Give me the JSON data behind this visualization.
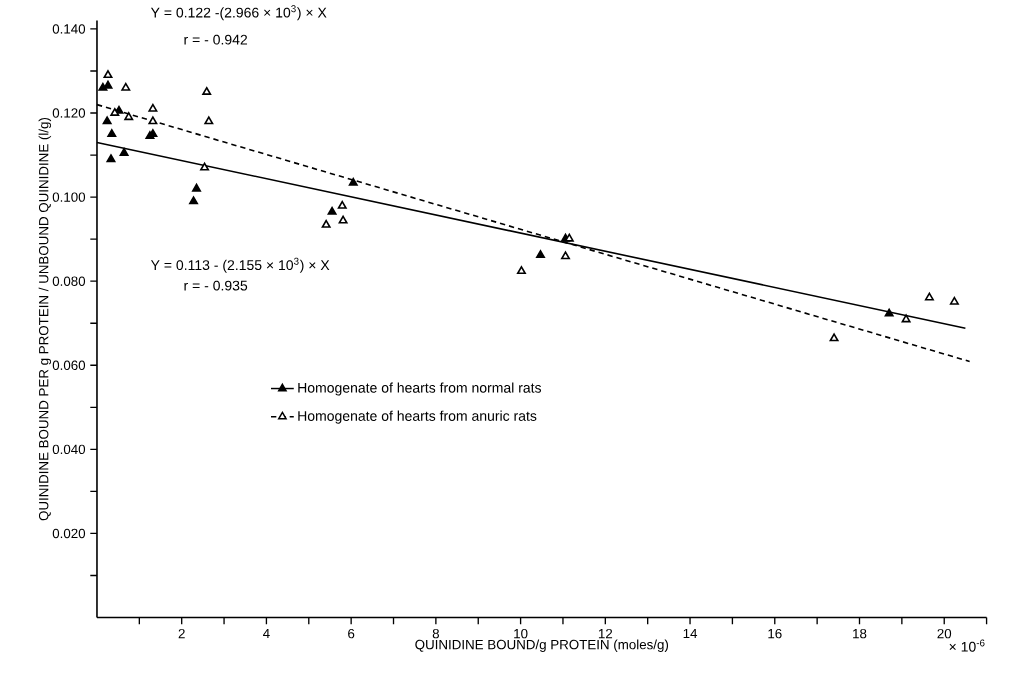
{
  "chart_data": {
    "type": "scatter",
    "xlabel": "QUINIDINE BOUND/g PROTEIN (moles/g)",
    "ylabel": "QUINIDINE BOUND PER g PROTEIN / UNBOUND QUINIDINE (l/g)",
    "annotations": [
      "Y = 0.122 -(2.966 × 10$^{3}$) × X",
      "r = - 0.942",
      "Y = 0.113 - (2.155 × 10$^{3}$) × X",
      "r = - 0.935",
      "× 10$^{-6}$"
    ],
    "xlim": [
      0,
      21
    ],
    "ylim": [
      0,
      0.142
    ],
    "xticks": [
      {
        "value": 1,
        "label": null
      },
      2,
      {
        "value": 3,
        "label": null
      },
      4,
      {
        "value": 5,
        "label": null
      },
      6,
      {
        "value": 7,
        "label": null
      },
      8,
      {
        "value": 9,
        "label": null
      },
      10,
      {
        "value": 11,
        "label": null
      },
      12,
      {
        "value": 13,
        "label": null
      },
      14,
      {
        "value": 15,
        "label": null
      },
      16,
      {
        "value": 17,
        "label": null
      },
      18,
      {
        "value": 19,
        "label": null
      },
      20,
      {
        "value": 21,
        "label": null
      }
    ],
    "yticks": [
      {
        "value": 0.01,
        "label": null
      },
      {
        "value": 0.02,
        "label": "0.020"
      },
      {
        "value": 0.03,
        "label": null
      },
      {
        "value": 0.04,
        "label": "0.040"
      },
      {
        "value": 0.05,
        "label": null
      },
      {
        "value": 0.06,
        "label": "0.060"
      },
      {
        "value": 0.07,
        "label": null
      },
      {
        "value": 0.08,
        "label": "0.080"
      },
      {
        "value": 0.09,
        "label": null
      },
      {
        "value": 0.1,
        "label": "0.100"
      },
      {
        "value": 0.11,
        "label": null
      },
      {
        "value": 0.12,
        "label": "0.120"
      },
      {
        "value": 0.13,
        "label": null
      },
      {
        "value": 0.14,
        "label": "0.140"
      }
    ],
    "legend": "center",
    "series": [
      {
        "name": "Homogenate of hearts from normal rats",
        "type": "scatter",
        "color": "#000000",
        "marker": "triangle",
        "x": [
          0.14,
          0.26,
          0.24,
          0.35,
          0.33,
          0.52,
          0.64,
          1.25,
          1.32,
          2.28,
          2.35,
          5.55,
          6.05,
          10.47,
          11.06,
          18.7
        ],
        "values": [
          0.126,
          0.1265,
          0.118,
          0.115,
          0.109,
          0.1205,
          0.1105,
          0.1145,
          0.115,
          0.099,
          0.102,
          0.0965,
          0.1034,
          0.0862,
          0.0901,
          0.0723
        ]
      },
      {
        "name": "Homogenate  of hearts from anuric rats",
        "type": "scatter",
        "color": "#000000",
        "marker": "triangle",
        "x": [
          0.26,
          0.42,
          0.68,
          0.75,
          1.32,
          1.32,
          2.54,
          2.59,
          2.64,
          5.41,
          5.79,
          5.81,
          10.02,
          11.06,
          11.15,
          17.4,
          19.1,
          19.65,
          20.24
        ],
        "values": [
          0.129,
          0.12,
          0.126,
          0.119,
          0.121,
          0.118,
          0.107,
          0.125,
          0.118,
          0.0934,
          0.0979,
          0.0944,
          0.0824,
          0.0859,
          0.0901,
          0.0664,
          0.0709,
          0.0761,
          0.0751
        ]
      },
      {
        "type": "line",
        "color": "#000000",
        "marker": "none",
        "line_style": "solid",
        "x": [
          0,
          20.5
        ],
        "values": [
          0.113,
          0.0688
        ]
      },
      {
        "type": "line",
        "color": "#000000",
        "marker": "none",
        "line_style": "dashed",
        "x": [
          0,
          20.6
        ],
        "values": [
          0.122,
          0.0609
        ]
      }
    ]
  }
}
